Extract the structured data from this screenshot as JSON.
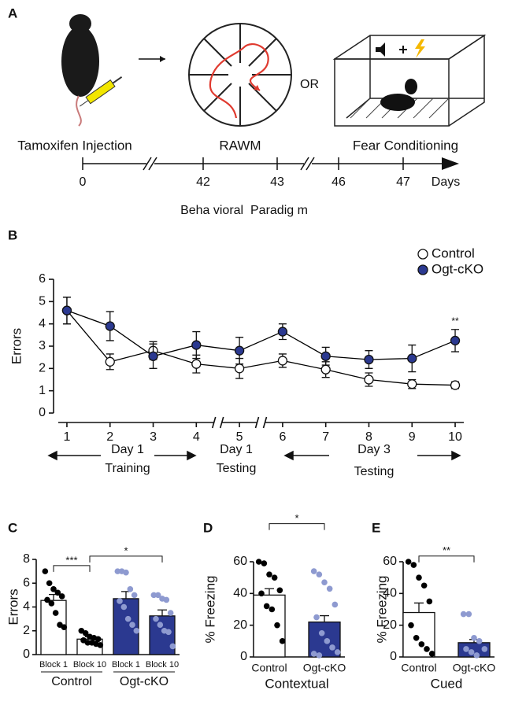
{
  "panel_a": {
    "label": "A",
    "stages": [
      "Tamoxifen Injection",
      "RAWM",
      "Fear Conditioning"
    ],
    "or": "OR",
    "ticks": [
      0,
      42,
      43,
      46,
      47
    ],
    "axis_label": "Days",
    "caption": "Beha vioral  Paradig m"
  },
  "chart_data": [
    {
      "type": "line",
      "panel": "B",
      "ylabel": "Errors",
      "x": [
        1,
        2,
        3,
        4,
        5,
        6,
        7,
        8,
        9,
        10
      ],
      "xlim": [
        0.8,
        10.2
      ],
      "xticks": [
        1,
        2,
        3,
        4,
        5,
        6,
        7,
        8,
        9,
        10
      ],
      "x_breaks": [
        4.5,
        5.5
      ],
      "ylim": [
        0,
        6
      ],
      "yticks": [
        0,
        1,
        2,
        3,
        4,
        5,
        6
      ],
      "series": [
        {
          "name": "Control",
          "color": "#000000",
          "marker_fill": "#ffffff",
          "values": [
            4.6,
            2.3,
            2.8,
            2.2,
            2.0,
            2.35,
            1.95,
            1.5,
            1.3,
            1.25
          ],
          "errors": [
            0.6,
            0.35,
            0.4,
            0.4,
            0.45,
            0.3,
            0.35,
            0.3,
            0.2,
            0.15
          ]
        },
        {
          "name": "Ogt-cKO",
          "color": "#000000",
          "marker_fill": "#2b3990",
          "values": [
            4.6,
            3.9,
            2.55,
            3.05,
            2.8,
            3.65,
            2.55,
            2.4,
            2.45,
            3.25
          ],
          "errors": [
            0.6,
            0.65,
            0.55,
            0.6,
            0.6,
            0.35,
            0.4,
            0.4,
            0.6,
            0.5
          ]
        }
      ],
      "annotations": [
        {
          "text": "**",
          "x": 10
        }
      ],
      "phases": [
        {
          "day": "Day 1",
          "name": "Training"
        },
        {
          "day": "Day 1",
          "name": "Testing"
        },
        {
          "day": "Day 3",
          "name": "Testing"
        }
      ]
    },
    {
      "type": "bar",
      "panel": "C",
      "ylabel": "Errors",
      "categories": [
        "Block 1",
        "Block 10",
        "Block 1",
        "Block 10"
      ],
      "groups": [
        "Control",
        "Ogt-cKO"
      ],
      "values": [
        4.55,
        1.3,
        4.7,
        3.25
      ],
      "errors": [
        0.5,
        0.2,
        0.6,
        0.5
      ],
      "points": [
        [
          7.0,
          6.0,
          5.5,
          5.2,
          4.9,
          4.6,
          4.3,
          3.5,
          2.5,
          2.3
        ],
        [
          2.0,
          1.8,
          1.5,
          1.4,
          1.3,
          1.2,
          1.0,
          1.0,
          0.9,
          0.8
        ],
        [
          7.0,
          7.0,
          6.9,
          5.5,
          5.0,
          4.5,
          4.0,
          3.0,
          2.5,
          2.0
        ],
        [
          5.0,
          5.0,
          4.7,
          4.6,
          3.5,
          3.0,
          2.5,
          2.0,
          1.9,
          0.7
        ]
      ],
      "bar_colors": [
        "#ffffff",
        "#ffffff",
        "#2b3990",
        "#2b3990"
      ],
      "point_colors": [
        "#000000",
        "#000000",
        "#8e9ad0",
        "#8e9ad0"
      ],
      "ylim": [
        0,
        8
      ],
      "yticks": [
        0,
        2,
        4,
        6,
        8
      ],
      "significance": [
        {
          "pair": [
            0,
            1
          ],
          "label": "***"
        },
        {
          "pair": [
            1,
            3
          ],
          "label": "*"
        }
      ]
    },
    {
      "type": "bar",
      "panel": "D",
      "ylabel": "% Freezing",
      "xlabel": "Contextual",
      "categories": [
        "Control",
        "Ogt-cKO"
      ],
      "values": [
        39,
        22
      ],
      "errors": [
        4,
        4
      ],
      "points": [
        [
          60,
          59,
          52,
          50,
          42,
          40,
          32,
          30,
          20,
          10
        ],
        [
          54,
          52,
          47,
          43,
          33,
          25,
          15,
          10,
          6,
          3,
          2,
          1
        ]
      ],
      "bar_colors": [
        "#ffffff",
        "#2b3990"
      ],
      "point_colors": [
        "#000000",
        "#8e9ad0"
      ],
      "ylim": [
        0,
        60
      ],
      "yticks": [
        0,
        20,
        40,
        60
      ],
      "significance": [
        {
          "pair": [
            0,
            1
          ],
          "label": "*"
        }
      ]
    },
    {
      "type": "bar",
      "panel": "E",
      "ylabel": "% Freezing",
      "xlabel": "Cued",
      "categories": [
        "Control",
        "Ogt-cKO"
      ],
      "values": [
        28,
        9
      ],
      "errors": [
        6,
        2
      ],
      "points": [
        [
          60,
          58,
          50,
          45,
          35,
          20,
          12,
          8,
          5,
          2
        ],
        [
          27,
          27,
          12,
          10,
          5,
          5,
          3,
          1
        ]
      ],
      "bar_colors": [
        "#ffffff",
        "#2b3990"
      ],
      "point_colors": [
        "#000000",
        "#8e9ad0"
      ],
      "ylim": [
        0,
        60
      ],
      "yticks": [
        0,
        20,
        40,
        60
      ],
      "significance": [
        {
          "pair": [
            0,
            1
          ],
          "label": "**"
        }
      ]
    }
  ]
}
